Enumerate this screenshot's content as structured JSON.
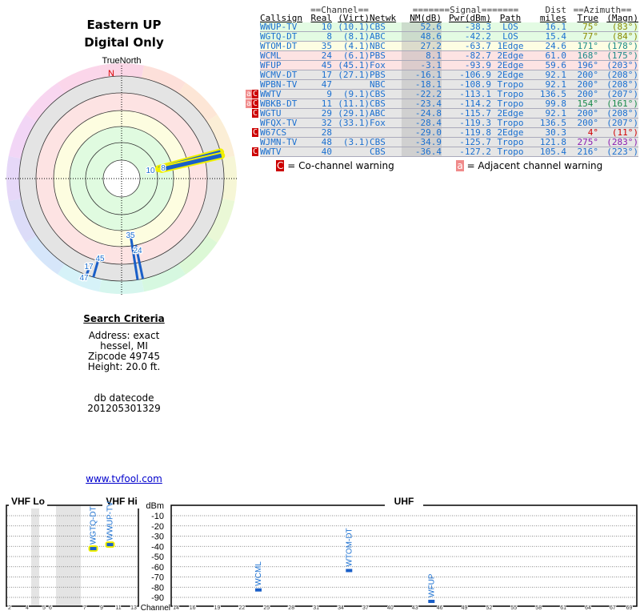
{
  "title": {
    "line1": "Eastern UP",
    "line2": "Digital Only"
  },
  "polar": {
    "north_label": "TrueNorth",
    "n_label": "N",
    "rays": [
      {
        "label": "10",
        "az": 75,
        "nm": 52.6,
        "highlight": true
      },
      {
        "label": "8",
        "az": 77,
        "nm": 48.6,
        "highlight": true
      },
      {
        "label": "35",
        "az": 171,
        "nm": 27.2
      },
      {
        "label": "24",
        "az": 168,
        "nm": 8.1
      },
      {
        "label": "45",
        "az": 196,
        "nm": -3.1
      },
      {
        "label": "17",
        "az": 200,
        "nm": -16.1
      },
      {
        "label": "47",
        "az": 200,
        "nm": -18.1
      }
    ]
  },
  "table": {
    "group_headers": {
      "channel": "==Channel==",
      "signal": "=======Signal=======",
      "dist": "Dist",
      "azimuth": "==Azimuth=="
    },
    "headers": [
      "Callsign",
      "Real",
      "(Virt)",
      "Netwk",
      "NM(dB)",
      "Pwr(dBm)",
      "Path",
      "miles",
      "True",
      "(Magn)"
    ],
    "rows": [
      {
        "warn": "",
        "call": "WWUP-TV",
        "real": "10",
        "virt": "(10.1)",
        "net": "CBS",
        "nm": "52.6",
        "pwr": "-38.3",
        "path": "LOS",
        "dist": "16.1",
        "true": "75°",
        "magn": "(83°)",
        "bg": "#e3fbe3",
        "nmbg": "#ccdccc",
        "azc": "#8a8a00"
      },
      {
        "warn": "",
        "call": "WGTQ-DT",
        "real": "8",
        "virt": "(8.1)",
        "net": "ABC",
        "nm": "48.6",
        "pwr": "-42.2",
        "path": "LOS",
        "dist": "15.4",
        "true": "77°",
        "magn": "(84°)",
        "bg": "#e3fbe3",
        "nmbg": "#ccdccc",
        "azc": "#8a8a00"
      },
      {
        "warn": "",
        "call": "WTOM-DT",
        "real": "35",
        "virt": "(4.1)",
        "net": "NBC",
        "nm": "27.2",
        "pwr": "-63.7",
        "path": "1Edge",
        "dist": "24.6",
        "true": "171°",
        "magn": "(178°)",
        "bg": "#fdfde3",
        "nmbg": "#dcdccc",
        "azc": "#1a8a8a"
      },
      {
        "warn": "",
        "call": "WCML",
        "real": "24",
        "virt": "(6.1)",
        "net": "PBS",
        "nm": "8.1",
        "pwr": "-82.7",
        "path": "2Edge",
        "dist": "61.0",
        "true": "168°",
        "magn": "(175°)",
        "bg": "#fde3e3",
        "nmbg": "#dccccc",
        "azc": "#1a8a8a"
      },
      {
        "warn": "",
        "call": "WFUP",
        "real": "45",
        "virt": "(45.1)",
        "net": "Fox",
        "nm": "-3.1",
        "pwr": "-93.9",
        "path": "2Edge",
        "dist": "59.6",
        "true": "196°",
        "magn": "(203°)",
        "bg": "#fde3e3",
        "nmbg": "#dccccc",
        "azc": "#1a6fd0"
      },
      {
        "warn": "",
        "call": "WCMV-DT",
        "real": "17",
        "virt": "(27.1)",
        "net": "PBS",
        "nm": "-16.1",
        "pwr": "-106.9",
        "path": "2Edge",
        "dist": "92.1",
        "true": "200°",
        "magn": "(208°)",
        "bg": "#e6e6e6",
        "nmbg": "#d0d0d0",
        "azc": "#1a6fd0"
      },
      {
        "warn": "",
        "call": "WPBN-TV",
        "real": "47",
        "virt": "",
        "net": "NBC",
        "nm": "-18.1",
        "pwr": "-108.9",
        "path": "Tropo",
        "dist": "92.1",
        "true": "200°",
        "magn": "(208°)",
        "bg": "#e6e6e6",
        "nmbg": "#d0d0d0",
        "azc": "#1a6fd0"
      },
      {
        "warn": "aC",
        "call": "WWTV",
        "real": "9",
        "virt": "(9.1)",
        "net": "CBS",
        "nm": "-22.2",
        "pwr": "-113.1",
        "path": "Tropo",
        "dist": "136.5",
        "true": "200°",
        "magn": "(207°)",
        "bg": "#e6e6e6",
        "nmbg": "#d0d0d0",
        "azc": "#1a6fd0"
      },
      {
        "warn": "aC",
        "call": "WBKB-DT",
        "real": "11",
        "virt": "(11.1)",
        "net": "CBS",
        "nm": "-23.4",
        "pwr": "-114.2",
        "path": "Tropo",
        "dist": "99.8",
        "true": "154°",
        "magn": "(161°)",
        "bg": "#e6e6e6",
        "nmbg": "#d0d0d0",
        "azc": "#1a8a4a"
      },
      {
        "warn": "C",
        "call": "WGTU",
        "real": "29",
        "virt": "(29.1)",
        "net": "ABC",
        "nm": "-24.8",
        "pwr": "-115.7",
        "path": "2Edge",
        "dist": "92.1",
        "true": "200°",
        "magn": "(208°)",
        "bg": "#e6e6e6",
        "nmbg": "#d0d0d0",
        "azc": "#1a6fd0"
      },
      {
        "warn": "",
        "call": "WFQX-TV",
        "real": "32",
        "virt": "(33.1)",
        "net": "Fox",
        "nm": "-28.4",
        "pwr": "-119.3",
        "path": "Tropo",
        "dist": "136.5",
        "true": "200°",
        "magn": "(207°)",
        "bg": "#e6e6e6",
        "nmbg": "#d0d0d0",
        "azc": "#1a6fd0"
      },
      {
        "warn": "C",
        "call": "W67CS",
        "real": "28",
        "virt": "",
        "net": "",
        "nm": "-29.0",
        "pwr": "-119.8",
        "path": "2Edge",
        "dist": "30.3",
        "true": "4°",
        "magn": "(11°)",
        "bg": "#e6e6e6",
        "nmbg": "#d0d0d0",
        "azc": "#d00000"
      },
      {
        "warn": "",
        "call": "WJMN-TV",
        "real": "48",
        "virt": "(3.1)",
        "net": "CBS",
        "nm": "-34.9",
        "pwr": "-125.7",
        "path": "Tropo",
        "dist": "121.8",
        "true": "275°",
        "magn": "(283°)",
        "bg": "#e6e6e6",
        "nmbg": "#d0d0d0",
        "azc": "#8a1ab0"
      },
      {
        "warn": "C",
        "call": "WWTV",
        "real": "40",
        "virt": "",
        "net": "CBS",
        "nm": "-36.4",
        "pwr": "-127.2",
        "path": "Tropo",
        "dist": "105.4",
        "true": "216°",
        "magn": "(223°)",
        "bg": "#e6e6e6",
        "nmbg": "#d0d0d0",
        "azc": "#1a6fd0"
      }
    ]
  },
  "legend": {
    "co_icon": "C",
    "co_text": "= Co-channel warning",
    "adj_icon": "a",
    "adj_text": "= Adjacent channel warning"
  },
  "criteria": {
    "heading": "Search Criteria",
    "address": "Address: exact",
    "city": "hessel, MI",
    "zip": "Zipcode 49745",
    "height": "Height: 20.0 ft.",
    "db1": "db datecode",
    "db2": "201205301329"
  },
  "link": "www.tvfool.com",
  "spectrum": {
    "vhf_lo": "VHF Lo",
    "vhf_hi": "VHF Hi",
    "uhf": "UHF",
    "dbm_label": "dBm",
    "channel_label": "Channel",
    "dbm_ticks": [
      "-10",
      "-20",
      "-30",
      "-40",
      "-50",
      "-60",
      "-70",
      "-80",
      "-90"
    ],
    "vhf_ticks": [
      "2",
      "4",
      "5",
      "6",
      "7",
      "9",
      "11",
      "13"
    ],
    "uhf_ticks": [
      "14",
      "16",
      "19",
      "22",
      "25",
      "28",
      "31",
      "34",
      "37",
      "40",
      "43",
      "46",
      "49",
      "52",
      "55",
      "58",
      "61",
      "64",
      "67",
      "69"
    ],
    "bars": [
      {
        "call": "WGTQ-DT",
        "ch": 8,
        "pwr": -42.2,
        "highlight": true
      },
      {
        "call": "WWUP-TV",
        "ch": 10,
        "pwr": -38.3,
        "highlight": true
      },
      {
        "call": "WCML",
        "ch": 24,
        "pwr": -82.7
      },
      {
        "call": "WTOM-DT",
        "ch": 35,
        "pwr": -63.7
      },
      {
        "call": "WFUP",
        "ch": 45,
        "pwr": -93.9
      }
    ]
  }
}
